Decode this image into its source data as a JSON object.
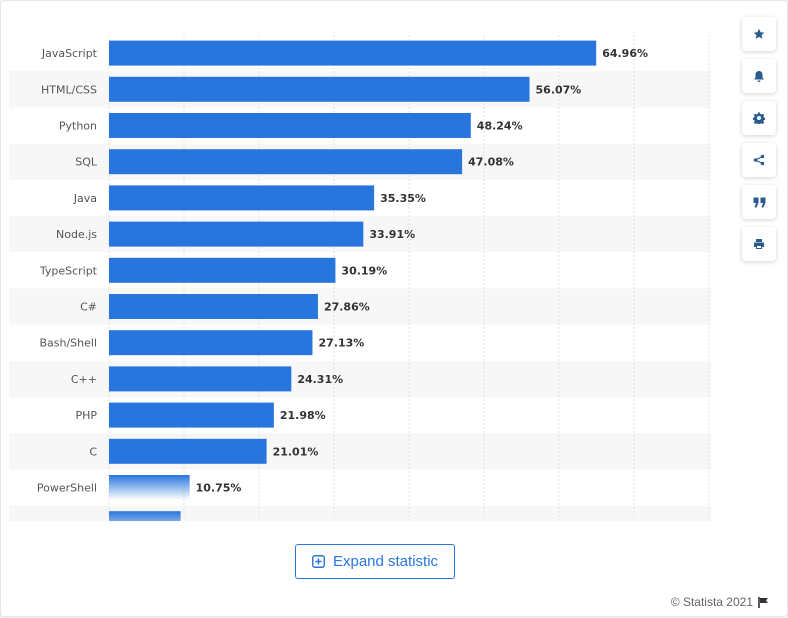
{
  "chart_data": {
    "type": "bar",
    "orientation": "horizontal",
    "categories": [
      "JavaScript",
      "HTML/CSS",
      "Python",
      "SQL",
      "Java",
      "Node.js",
      "TypeScript",
      "C#",
      "Bash/Shell",
      "C++",
      "PHP",
      "C",
      "PowerShell",
      ""
    ],
    "values": [
      64.96,
      56.07,
      48.24,
      47.08,
      35.35,
      33.91,
      30.19,
      27.86,
      27.13,
      24.31,
      21.98,
      21.01,
      10.75,
      9.55
    ],
    "value_labels": [
      "64.96%",
      "56.07%",
      "48.24%",
      "47.08%",
      "35.35%",
      "33.91%",
      "30.19%",
      "27.86%",
      "27.13%",
      "24.31%",
      "21.98%",
      "21.01%",
      "10.75%",
      ""
    ],
    "xlim": [
      0,
      80
    ],
    "grid": true,
    "bar_color": "#2876dd",
    "legend": "none"
  },
  "toolbar": {
    "icons": [
      "star-icon",
      "bell-icon",
      "gear-icon",
      "share-icon",
      "quote-icon",
      "print-icon"
    ]
  },
  "expand_button": {
    "label": "Expand statistic"
  },
  "footer": {
    "credit": "© Statista 2021"
  },
  "colors": {
    "accent": "#2876dd"
  }
}
